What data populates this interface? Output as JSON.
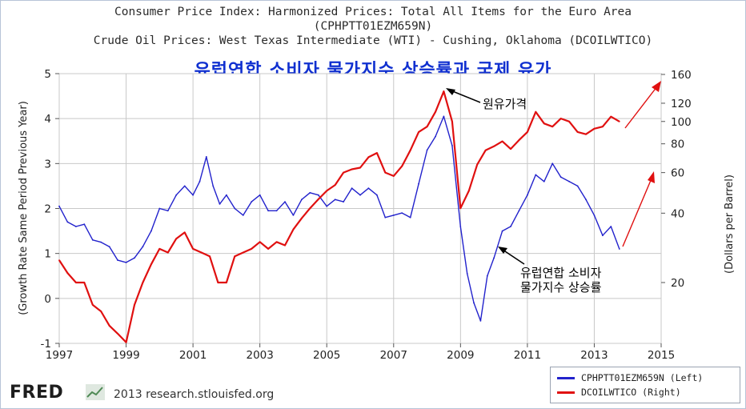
{
  "titles": {
    "line1": "Consumer Price Index: Harmonized Prices: Total All Items for the Euro Area",
    "line2": "(CPHPTT01EZM659N)",
    "line3": "Crude Oil Prices: West Texas Intermediate (WTI) - Cushing, Oklahoma (DCOILWTICO)",
    "korean": "유럽연합 소비자 물가지수 상승률과 국제 유가"
  },
  "annotations": {
    "oil_label": "원유가격",
    "cpi_label_line1": "유럽연합 소비자",
    "cpi_label_line2": "물가지수 상승률"
  },
  "legend": {
    "cpi": "CPHPTT01EZM659N (Left)",
    "oil": "DCOILWTICO (Right)"
  },
  "footer": {
    "logo": "FRED",
    "credit": "2013 research.stlouisfed.org"
  },
  "colors": {
    "cpi": "#2222cc",
    "oil": "#e01010",
    "arrow": "#e01010",
    "grid": "#c8c8c8"
  },
  "chart_data": {
    "type": "line",
    "xlim": [
      1997,
      2015
    ],
    "x_ticks": [
      "1997",
      "1999",
      "2001",
      "2003",
      "2005",
      "2007",
      "2009",
      "2011",
      "2013",
      "2015"
    ],
    "left_axis": {
      "label": "(Growth Rate Same Period Previous Year)",
      "lim": [
        -1,
        5
      ],
      "ticks": [
        "-1",
        "0",
        "1",
        "2",
        "3",
        "4",
        "5"
      ]
    },
    "right_axis": {
      "label": "(Dollars per Barrel)",
      "scale": "log",
      "ticks": [
        "20",
        "40",
        "60",
        "80",
        "100",
        "120",
        "160"
      ]
    },
    "series": [
      {
        "name": "CPHPTT01EZM659N (Left)",
        "axis": "left",
        "x": [
          1997.0,
          1997.25,
          1997.5,
          1997.75,
          1998.0,
          1998.25,
          1998.5,
          1998.75,
          1999.0,
          1999.25,
          1999.5,
          1999.75,
          2000.0,
          2000.25,
          2000.5,
          2000.75,
          2001.0,
          2001.2,
          2001.4,
          2001.6,
          2001.8,
          2002.0,
          2002.25,
          2002.5,
          2002.75,
          2003.0,
          2003.25,
          2003.5,
          2003.75,
          2004.0,
          2004.25,
          2004.5,
          2004.75,
          2005.0,
          2005.25,
          2005.5,
          2005.75,
          2006.0,
          2006.25,
          2006.5,
          2006.75,
          2007.0,
          2007.25,
          2007.5,
          2007.75,
          2008.0,
          2008.25,
          2008.5,
          2008.75,
          2009.0,
          2009.2,
          2009.4,
          2009.6,
          2009.8,
          2010.0,
          2010.25,
          2010.5,
          2010.75,
          2011.0,
          2011.25,
          2011.5,
          2011.75,
          2012.0,
          2012.25,
          2012.5,
          2012.75,
          2013.0,
          2013.25,
          2013.5,
          2013.75
        ],
        "values": [
          2.05,
          1.7,
          1.6,
          1.65,
          1.3,
          1.25,
          1.15,
          0.85,
          0.8,
          0.9,
          1.15,
          1.5,
          2.0,
          1.95,
          2.3,
          2.5,
          2.3,
          2.6,
          3.15,
          2.5,
          2.1,
          2.3,
          2.0,
          1.85,
          2.15,
          2.3,
          1.95,
          1.95,
          2.15,
          1.85,
          2.2,
          2.35,
          2.3,
          2.05,
          2.2,
          2.15,
          2.45,
          2.3,
          2.45,
          2.3,
          1.8,
          1.85,
          1.9,
          1.8,
          2.55,
          3.3,
          3.6,
          4.05,
          3.4,
          1.6,
          0.55,
          -0.1,
          -0.5,
          0.5,
          0.9,
          1.5,
          1.6,
          1.95,
          2.3,
          2.75,
          2.6,
          3.0,
          2.7,
          2.6,
          2.5,
          2.2,
          1.85,
          1.4,
          1.6,
          1.1
        ]
      },
      {
        "name": "DCOILWTICO (Right)",
        "axis": "right",
        "x": [
          1997.0,
          1997.25,
          1997.5,
          1997.75,
          1998.0,
          1998.25,
          1998.5,
          1998.75,
          1999.0,
          1999.25,
          1999.5,
          1999.75,
          2000.0,
          2000.25,
          2000.5,
          2000.75,
          2001.0,
          2001.25,
          2001.5,
          2001.75,
          2002.0,
          2002.25,
          2002.5,
          2002.75,
          2003.0,
          2003.25,
          2003.5,
          2003.75,
          2004.0,
          2004.25,
          2004.5,
          2004.75,
          2005.0,
          2005.25,
          2005.5,
          2005.75,
          2006.0,
          2006.25,
          2006.5,
          2006.75,
          2007.0,
          2007.25,
          2007.5,
          2007.75,
          2008.0,
          2008.25,
          2008.5,
          2008.75,
          2009.0,
          2009.25,
          2009.5,
          2009.75,
          2010.0,
          2010.25,
          2010.5,
          2010.75,
          2011.0,
          2011.25,
          2011.5,
          2011.75,
          2012.0,
          2012.25,
          2012.5,
          2012.75,
          2013.0,
          2013.25,
          2013.5,
          2013.75
        ],
        "values": [
          25,
          22,
          20,
          20,
          16,
          15,
          13,
          12,
          11,
          16,
          20,
          24,
          28,
          27,
          31,
          33,
          28,
          27,
          26,
          20,
          20,
          26,
          27,
          28,
          30,
          28,
          30,
          29,
          34,
          38,
          42,
          46,
          50,
          53,
          60,
          62,
          63,
          70,
          73,
          60,
          58,
          64,
          75,
          90,
          95,
          110,
          135,
          100,
          42,
          50,
          65,
          75,
          78,
          82,
          76,
          83,
          90,
          110,
          98,
          95,
          103,
          100,
          90,
          88,
          93,
          95,
          105,
          100
        ]
      }
    ]
  }
}
